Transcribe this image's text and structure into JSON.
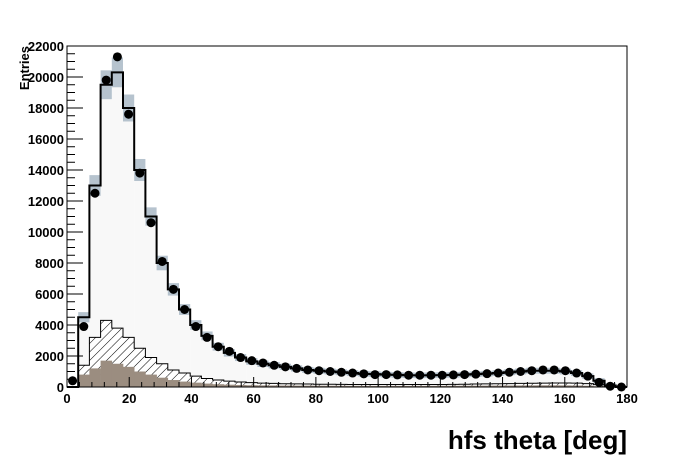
{
  "chart_data": {
    "type": "histogram",
    "xlabel": "hfs theta [deg]",
    "ylabel": "Entries",
    "xlim": [
      0,
      180
    ],
    "ylim": [
      0,
      22000
    ],
    "grid": false,
    "bin_width": 3.6,
    "x_ticks": [
      0,
      20,
      40,
      60,
      80,
      100,
      120,
      140,
      160,
      180
    ],
    "y_ticks": [
      0,
      2000,
      4000,
      6000,
      8000,
      10000,
      12000,
      14000,
      16000,
      18000,
      20000,
      22000
    ],
    "series": [
      {
        "style": "data points with error bars",
        "values": [
          400,
          3900,
          12500,
          19800,
          21300,
          17600,
          13800,
          10600,
          8100,
          6300,
          5000,
          3900,
          3200,
          2600,
          2300,
          1900,
          1700,
          1550,
          1400,
          1300,
          1200,
          1100,
          1050,
          1000,
          950,
          900,
          850,
          800,
          800,
          780,
          760,
          760,
          760,
          760,
          780,
          800,
          830,
          860,
          900,
          950,
          1000,
          1050,
          1100,
          1100,
          1050,
          900,
          700,
          300,
          50,
          0
        ]
      },
      {
        "style": "black solid line histogram with shaded uncertainty band",
        "values": [
          0,
          4500,
          13000,
          19500,
          20300,
          18000,
          14000,
          11000,
          8000,
          6300,
          5000,
          4000,
          3300,
          2600,
          2200,
          1900,
          1650,
          1500,
          1400,
          1300,
          1200,
          1100,
          1050,
          1000,
          950,
          900,
          850,
          830,
          800,
          780,
          760,
          750,
          760,
          770,
          780,
          800,
          830,
          860,
          900,
          950,
          1000,
          1050,
          1050,
          1050,
          1000,
          900,
          700,
          400,
          100,
          0
        ]
      },
      {
        "style": "hatched histogram",
        "values": [
          0,
          1400,
          3200,
          4300,
          3800,
          3200,
          2500,
          1900,
          1500,
          1100,
          900,
          700,
          550,
          450,
          380,
          320,
          280,
          250,
          230,
          210,
          200,
          190,
          180,
          175,
          170,
          165,
          160,
          160,
          160,
          160,
          160,
          160,
          160,
          165,
          170,
          180,
          190,
          200,
          210,
          220,
          230,
          240,
          250,
          260,
          260,
          250,
          220,
          150,
          50,
          0
        ]
      },
      {
        "style": "filled brown histogram",
        "values": [
          0,
          800,
          1200,
          1700,
          1500,
          1300,
          1000,
          800,
          600,
          450,
          350,
          280,
          220,
          180,
          150,
          130,
          115,
          105,
          100,
          95,
          90,
          88,
          85,
          82,
          80,
          78,
          76,
          75,
          75,
          75,
          75,
          75,
          76,
          78,
          80,
          82,
          85,
          88,
          92,
          96,
          100,
          105,
          110,
          110,
          105,
          95,
          80,
          50,
          15,
          0
        ]
      }
    ]
  },
  "colors": {
    "frame": "#000000",
    "data_marker": "#000000",
    "mc_line": "#000000",
    "mc_fill": "#f8f8f8",
    "band": "#a9b8c6",
    "hatch": "#000000",
    "brown": "#9b8d80"
  }
}
